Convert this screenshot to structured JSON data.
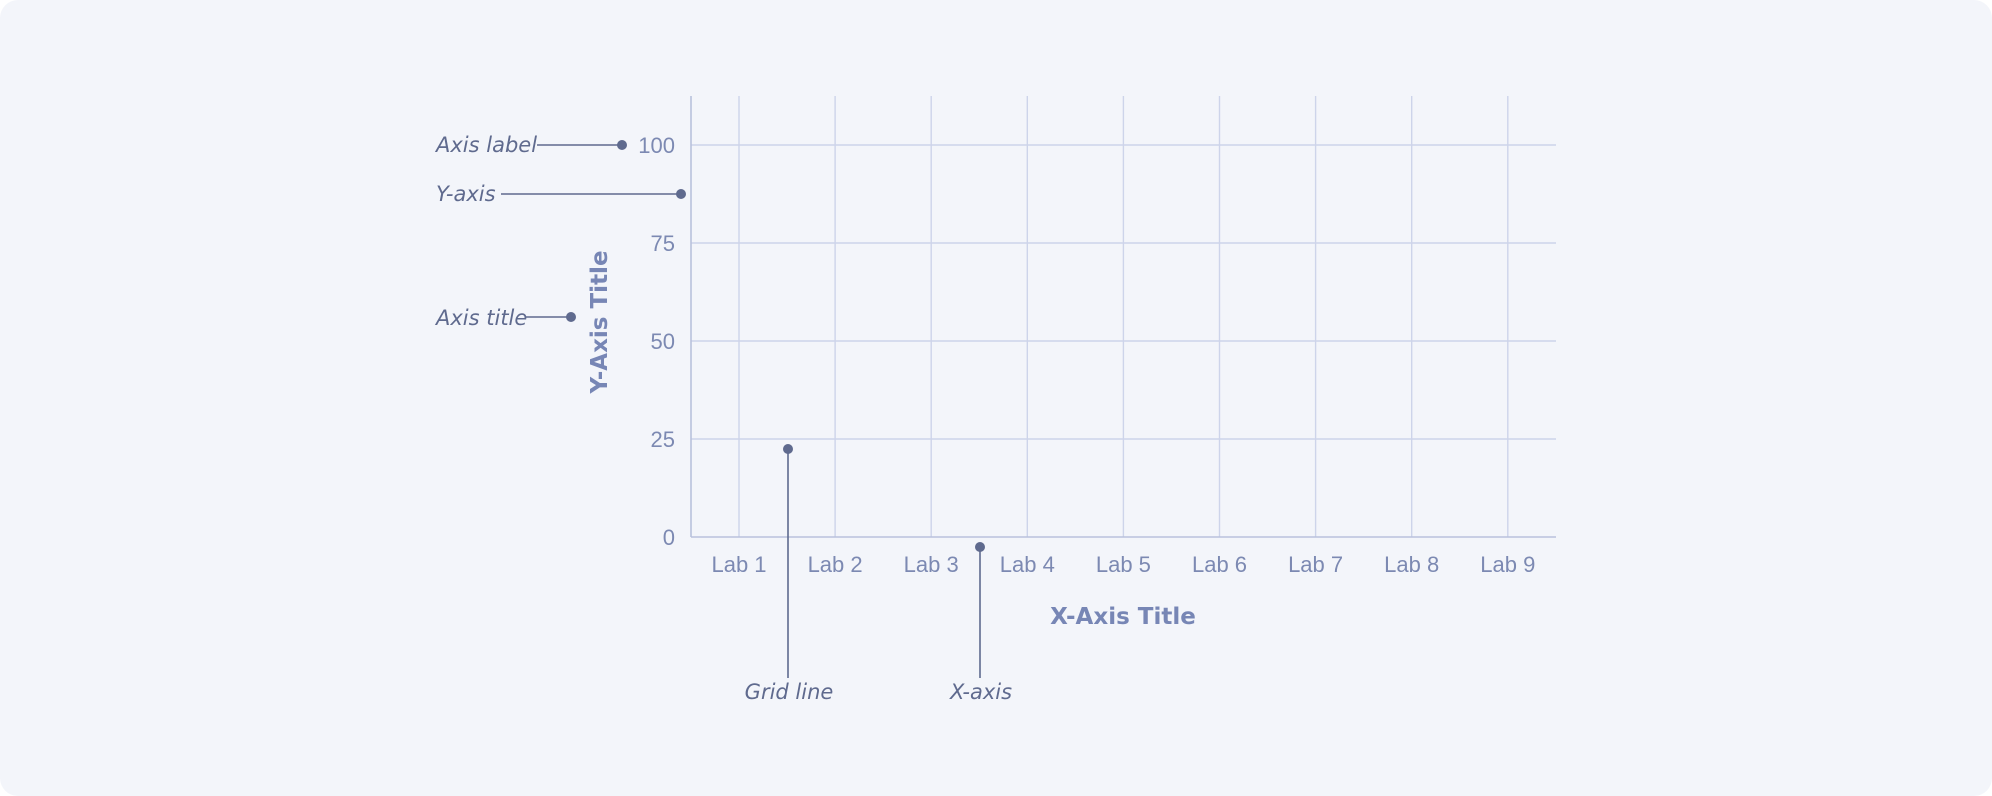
{
  "chart_data": {
    "type": "line",
    "title": "",
    "xlabel": "X-Axis Title",
    "ylabel": "Y-Axis Title",
    "categories": [
      "Lab 1",
      "Lab 2",
      "Lab 3",
      "Lab 4",
      "Lab 5",
      "Lab 6",
      "Lab 7",
      "Lab 8",
      "Lab 9"
    ],
    "y_ticks": [
      "0",
      "25",
      "50",
      "75",
      "100"
    ],
    "ylim": [
      0,
      100
    ],
    "grid": true,
    "series": []
  },
  "callouts": {
    "axis_label": "Axis label",
    "y_axis": "Y-axis",
    "axis_title": "Axis title",
    "grid_line": "Grid line",
    "x_axis": "X-axis"
  },
  "colors": {
    "background": "#f3f5fa",
    "grid": "#cdd4ea",
    "axis": "#b9c1dc",
    "tick_text": "#7c89b2",
    "axis_title": "#7786b5",
    "callout": "#5f6a8e"
  }
}
